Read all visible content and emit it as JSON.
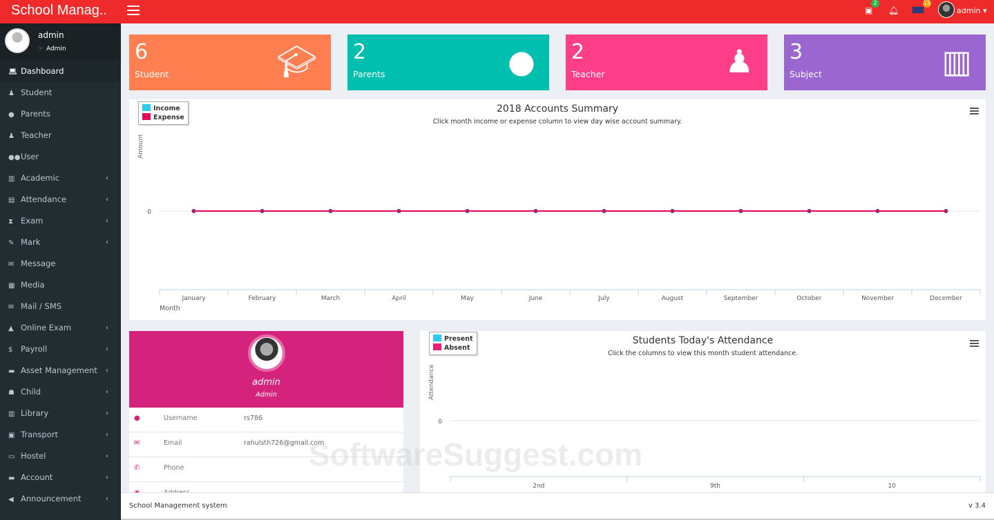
{
  "header": {
    "brand": "School Manag..",
    "user": "admin",
    "calendar_badge": "2",
    "flag_badge": "15",
    "colors": {
      "bar": "#ee2a2a"
    }
  },
  "sidebar": {
    "user_name": "admin",
    "user_role": "Admin",
    "items": [
      {
        "label": "Dashboard",
        "icon": "laptop-icon",
        "sub": false
      },
      {
        "label": "Student",
        "icon": "student-icon",
        "sub": false
      },
      {
        "label": "Parents",
        "icon": "user-icon",
        "sub": false
      },
      {
        "label": "Teacher",
        "icon": "teacher-icon",
        "sub": false
      },
      {
        "label": "User",
        "icon": "users-icon",
        "sub": false
      },
      {
        "label": "Academic",
        "icon": "building-icon",
        "sub": true
      },
      {
        "label": "Attendance",
        "icon": "clipboard-icon",
        "sub": true
      },
      {
        "label": "Exam",
        "icon": "hourglass-icon",
        "sub": true
      },
      {
        "label": "Mark",
        "icon": "edit-icon",
        "sub": true
      },
      {
        "label": "Message",
        "icon": "envelope-icon",
        "sub": false
      },
      {
        "label": "Media",
        "icon": "film-icon",
        "sub": false
      },
      {
        "label": "Mail / SMS",
        "icon": "mail-icon",
        "sub": false
      },
      {
        "label": "Online Exam",
        "icon": "graduation-cap-icon",
        "sub": true
      },
      {
        "label": "Payroll",
        "icon": "dollar-icon",
        "sub": true
      },
      {
        "label": "Asset Management",
        "icon": "archive-icon",
        "sub": true
      },
      {
        "label": "Child",
        "icon": "child-icon",
        "sub": true
      },
      {
        "label": "Library",
        "icon": "books-icon",
        "sub": true
      },
      {
        "label": "Transport",
        "icon": "bus-icon",
        "sub": true
      },
      {
        "label": "Hostel",
        "icon": "bed-icon",
        "sub": true
      },
      {
        "label": "Account",
        "icon": "money-icon",
        "sub": true
      },
      {
        "label": "Announcement",
        "icon": "bullhorn-icon",
        "sub": true
      }
    ]
  },
  "cards": [
    {
      "count": "6",
      "label": "Student",
      "color": "#ff7f50",
      "icon": "graduate-icon"
    },
    {
      "count": "2",
      "label": "Parents",
      "color": "#00bfae",
      "icon": "user-icon"
    },
    {
      "count": "2",
      "label": "Teacher",
      "color": "#ff3e8a",
      "icon": "teacher-icon"
    },
    {
      "count": "3",
      "label": "Subject",
      "color": "#9c66d0",
      "icon": "books-icon"
    }
  ],
  "chart_data": [
    {
      "type": "line",
      "title": "2018 Accounts Summary",
      "subtitle": "Click month income or expense column to view day wise account summary.",
      "xlabel": "Month",
      "ylabel": "Amount",
      "legend_position": "top-left",
      "categories": [
        "January",
        "February",
        "March",
        "April",
        "May",
        "June",
        "July",
        "August",
        "September",
        "October",
        "November",
        "December"
      ],
      "y_ticks": [
        "0"
      ],
      "series": [
        {
          "name": "Income",
          "color": "#2ecbf0",
          "values": [
            0,
            0,
            0,
            0,
            0,
            0,
            0,
            0,
            0,
            0,
            0,
            0
          ]
        },
        {
          "name": "Expense",
          "color": "#e8005a",
          "values": [
            0,
            0,
            0,
            0,
            0,
            0,
            0,
            0,
            0,
            0,
            0,
            0
          ]
        }
      ]
    },
    {
      "type": "bar",
      "title": "Students Today's Attendance",
      "subtitle": "Click the columns to view this month student attendance.",
      "xlabel": "",
      "ylabel": "Attendance",
      "legend_position": "top-left",
      "categories": [
        "2nd",
        "9th",
        "10"
      ],
      "y_ticks": [
        "0"
      ],
      "series": [
        {
          "name": "Present",
          "color": "#2ecbf0",
          "values": [
            0,
            0,
            0
          ]
        },
        {
          "name": "Absent",
          "color": "#e8207a",
          "values": [
            0,
            0,
            0
          ]
        }
      ]
    }
  ],
  "profile": {
    "name": "admin",
    "role": "Admin",
    "rows": [
      {
        "key": "Username",
        "value": "rs786",
        "icon": "user-icon"
      },
      {
        "key": "Email",
        "value": "rahulsth726@gmail.com",
        "icon": "envelope-icon"
      },
      {
        "key": "Phone",
        "value": "",
        "icon": "phone-icon"
      },
      {
        "key": "Address",
        "value": "",
        "icon": "map-marker-icon"
      }
    ]
  },
  "footer": {
    "left": "School Management system",
    "version": "v 3.4"
  },
  "watermark": "SoftwareSuggest.com"
}
